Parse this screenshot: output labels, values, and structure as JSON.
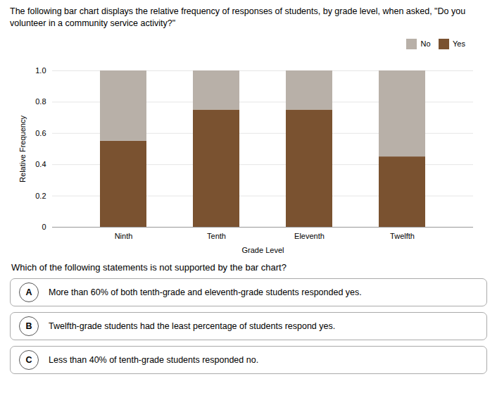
{
  "chart_data": {
    "type": "bar",
    "title": "The following bar chart displays the relative frequency of responses of students, by grade level, when asked, \"Do you volunteer in a community service activity?\"",
    "categories": [
      "Ninth",
      "Tenth",
      "Eleventh",
      "Twelfth"
    ],
    "series": [
      {
        "name": "Yes",
        "color": "#7a5230",
        "values": [
          0.55,
          0.75,
          0.75,
          0.45
        ]
      },
      {
        "name": "No",
        "color": "#b8b0a8",
        "values": [
          0.45,
          0.25,
          0.25,
          0.55
        ]
      }
    ],
    "stacked": true,
    "xlabel": "Grade Level",
    "ylabel": "Relative Frequency",
    "ylim": [
      0,
      1.0
    ],
    "yticks": [
      0,
      0.2,
      0.4,
      0.6,
      0.8,
      {
        "value": 1.0,
        "label": "1.0"
      }
    ],
    "grid": true,
    "legend": "upper right",
    "annotations": [
      {
        "text": "Which of the following statements is not supported by the bar chart?"
      },
      {
        "label": "A",
        "text": "More than 60% of both tenth-grade and eleventh-grade students responded yes."
      },
      {
        "label": "B",
        "text": "Twelfth-grade students had the least percentage of students respond yes."
      },
      {
        "label": "C",
        "text": "Less than 40% of tenth-grade students responded no."
      }
    ]
  }
}
